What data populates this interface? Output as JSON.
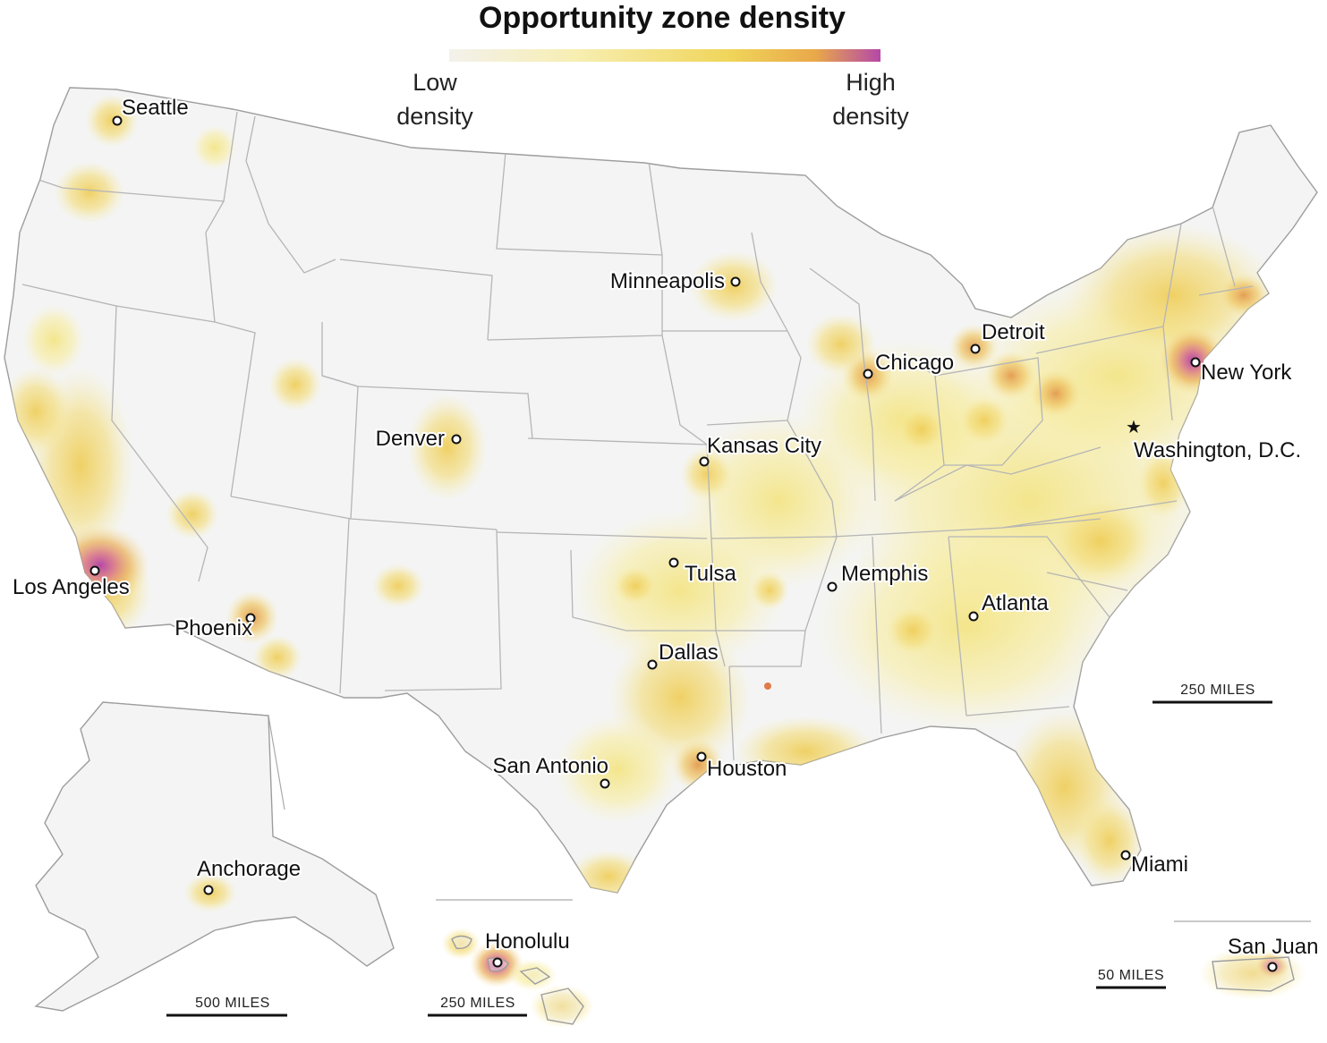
{
  "title": "Opportunity zone density",
  "legend": {
    "low_label_line1": "Low",
    "low_label_line2": "density",
    "high_label_line1": "High",
    "high_label_line2": "density",
    "gradient_colors": [
      "#f3f1ec",
      "#f7eeb0",
      "#f0d55a",
      "#e9a84a",
      "#b548a8"
    ]
  },
  "cities": {
    "seattle": "Seattle",
    "minneapolis": "Minneapolis",
    "detroit": "Detroit",
    "chicago": "Chicago",
    "new_york": "New York",
    "washington": "Washington, D.C.",
    "denver": "Denver",
    "kansas_city": "Kansas City",
    "los_angeles": "Los Angeles",
    "tulsa": "Tulsa",
    "memphis": "Memphis",
    "atlanta": "Atlanta",
    "phoenix": "Phoenix",
    "dallas": "Dallas",
    "san_antonio": "San Antonio",
    "houston": "Houston",
    "miami": "Miami",
    "anchorage": "Anchorage",
    "honolulu": "Honolulu",
    "san_juan": "San Juan"
  },
  "scale_bars": {
    "mainland": "250 MILES",
    "alaska": "500 MILES",
    "hawaii": "250 MILES",
    "puerto_rico": "50 MILES"
  },
  "colors": {
    "low": "#f7eeb0",
    "mid": "#f0d55a",
    "orange": "#e9a84a",
    "high": "#b548a8"
  }
}
